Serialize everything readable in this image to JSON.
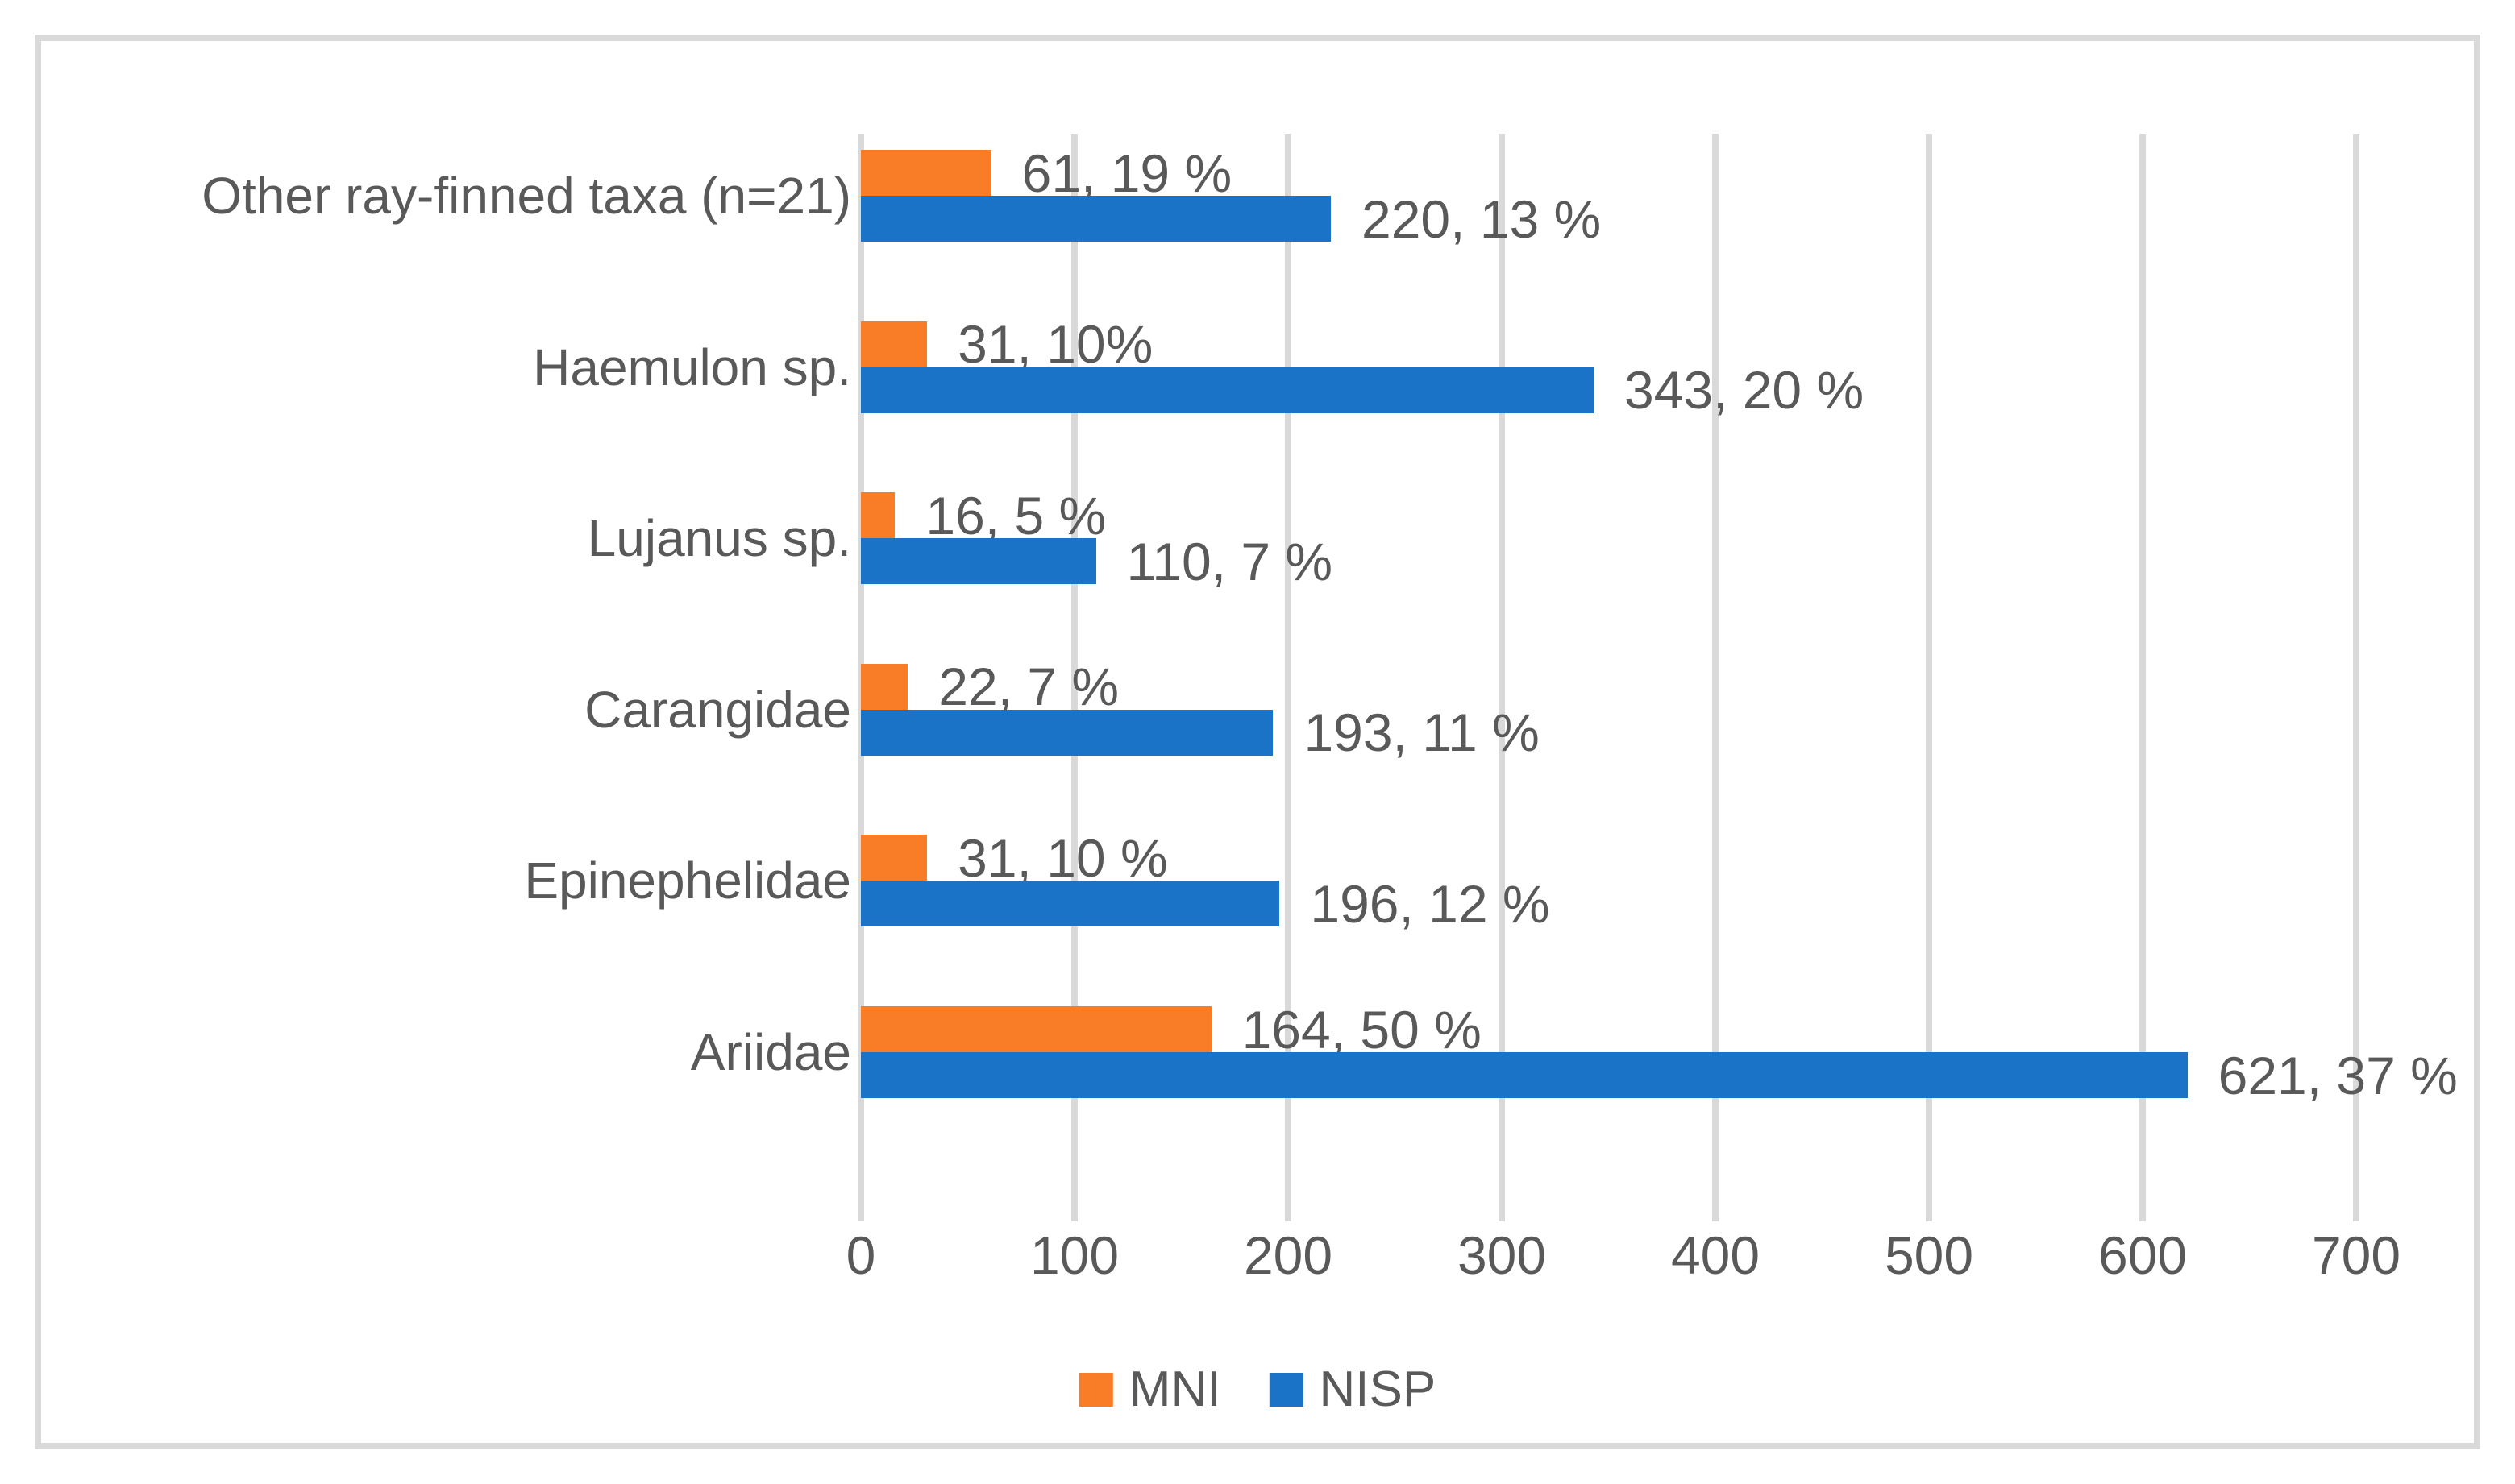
{
  "chart_data": {
    "type": "bar",
    "orientation": "horizontal",
    "title": "",
    "xlabel": "",
    "ylabel": "",
    "categories": [
      "Other ray-finned taxa (n=21)",
      "Haemulon sp.",
      "Lujanus sp.",
      "Carangidae",
      "Epinephelidae",
      "Ariidae"
    ],
    "series": [
      {
        "name": "MNI",
        "color": "#F97C27",
        "values": [
          61,
          31,
          16,
          22,
          31,
          164
        ],
        "data_labels": [
          "61, 19 %",
          "31, 10%",
          "16, 5 %",
          "22, 7 %",
          "31, 10 %",
          "164, 50 %"
        ]
      },
      {
        "name": "NISP",
        "color": "#1B73C8",
        "values": [
          220,
          343,
          110,
          193,
          196,
          621
        ],
        "data_labels": [
          "220, 13 %",
          "343, 20 %",
          "110, 7 %",
          "193, 11 %",
          "196, 12 %",
          "621, 37 %"
        ]
      }
    ],
    "x_axis": {
      "min": 0,
      "max": 700,
      "tick_step": 100,
      "tick_labels": [
        "0",
        "100",
        "200",
        "300",
        "400",
        "500",
        "600",
        "700"
      ]
    },
    "grid": "vertical",
    "legend_position": "bottom",
    "colors": {
      "text": "#595959",
      "gridlines": "#D9D9D9",
      "frame_border": "#D9D9D9",
      "background": "#FFFFFF"
    }
  }
}
